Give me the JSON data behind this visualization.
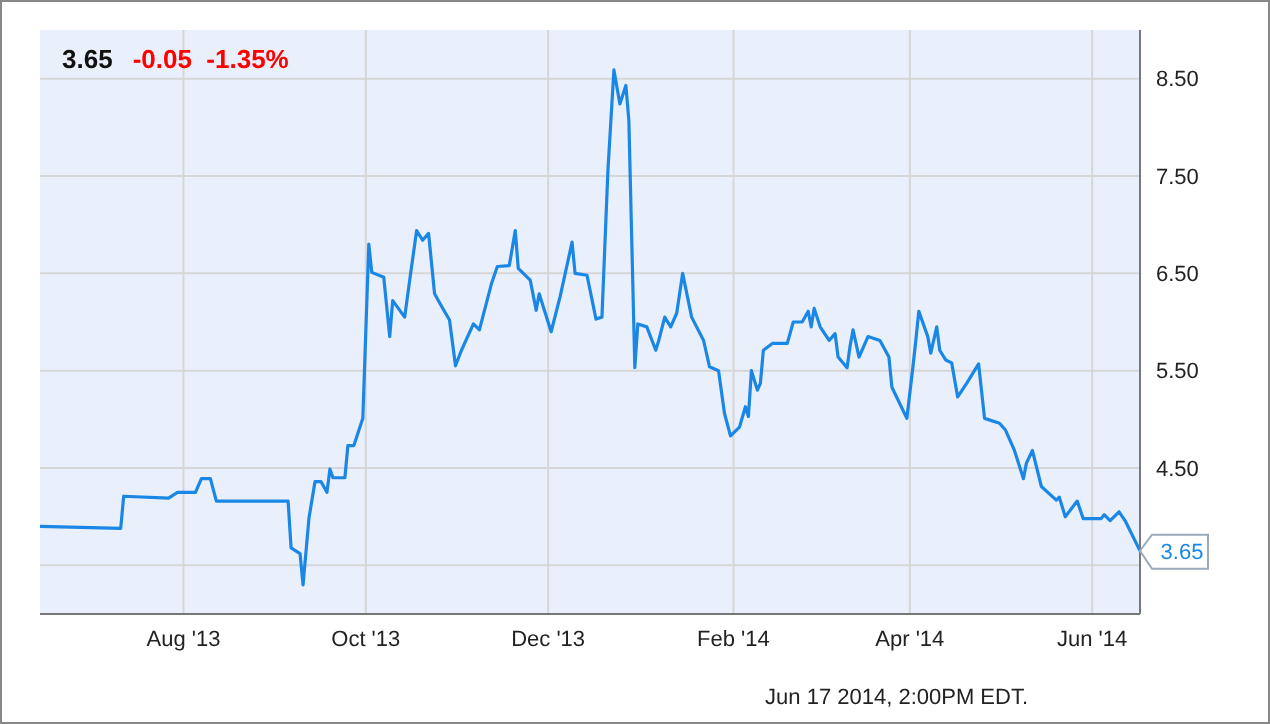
{
  "chart_data": {
    "type": "line",
    "title": "3.65",
    "subtitle": "-0.05  -1.35%",
    "annotations": [
      {
        "text": "3.65",
        "x": "2014-06-17",
        "y": 3.65
      },
      "Jun 17 2014, 2:00PM EDT."
    ],
    "x": [
      "2013-06-14",
      "2013-07-11",
      "2013-07-12",
      "2013-07-27",
      "2013-07-30",
      "2013-08-05",
      "2013-08-07",
      "2013-08-10",
      "2013-08-12",
      "2013-09-05",
      "2013-09-06",
      "2013-09-09",
      "2013-09-10",
      "2013-09-12",
      "2013-09-14",
      "2013-09-16",
      "2013-09-18",
      "2013-09-19",
      "2013-09-20",
      "2013-09-24",
      "2013-09-25",
      "2013-09-27",
      "2013-09-30",
      "2013-10-02",
      "2013-10-03",
      "2013-10-07",
      "2013-10-09",
      "2013-10-10",
      "2013-10-14",
      "2013-10-16",
      "2013-10-18",
      "2013-10-20",
      "2013-10-22",
      "2013-10-24",
      "2013-10-26",
      "2013-10-29",
      "2013-10-31",
      "2013-11-02",
      "2013-11-06",
      "2013-11-08",
      "2013-11-12",
      "2013-11-14",
      "2013-11-18",
      "2013-11-20",
      "2013-11-21",
      "2013-11-25",
      "2013-11-27",
      "2013-11-28",
      "2013-12-02",
      "2013-12-05",
      "2013-12-09",
      "2013-12-10",
      "2013-12-14",
      "2013-12-17",
      "2013-12-19",
      "2013-12-21",
      "2013-12-23",
      "2013-12-25",
      "2013-12-27",
      "2013-12-28",
      "2013-12-30",
      "2013-12-31",
      "2014-01-03",
      "2014-01-06",
      "2014-01-07",
      "2014-01-09",
      "2014-01-11",
      "2014-01-13",
      "2014-01-15",
      "2014-01-18",
      "2014-01-22",
      "2014-01-24",
      "2014-01-27",
      "2014-01-29",
      "2014-01-31",
      "2014-02-03",
      "2014-02-05",
      "2014-02-06",
      "2014-02-07",
      "2014-02-09",
      "2014-02-10",
      "2014-02-11",
      "2014-02-14",
      "2014-02-19",
      "2014-02-21",
      "2014-02-24",
      "2014-02-26",
      "2014-02-27",
      "2014-02-28",
      "2014-03-02",
      "2014-03-05",
      "2014-03-07",
      "2014-03-08",
      "2014-03-11",
      "2014-03-12",
      "2014-03-13",
      "2014-03-15",
      "2014-03-18",
      "2014-03-22",
      "2014-03-25",
      "2014-03-26",
      "2014-03-31",
      "2014-04-02",
      "2014-04-03",
      "2014-04-04",
      "2014-04-07",
      "2014-04-08",
      "2014-04-10",
      "2014-04-11",
      "2014-04-13",
      "2014-04-15",
      "2014-04-17",
      "2014-04-20",
      "2014-04-24",
      "2014-04-26",
      "2014-05-01",
      "2014-05-03",
      "2014-05-06",
      "2014-05-09",
      "2014-05-10",
      "2014-05-12",
      "2014-05-15",
      "2014-05-20",
      "2014-05-21",
      "2014-05-23",
      "2014-05-27",
      "2014-05-29",
      "2014-06-04",
      "2014-06-05",
      "2014-06-07",
      "2014-06-10",
      "2014-06-12",
      "2014-06-17"
    ],
    "values": [
      3.9,
      3.88,
      4.21,
      4.19,
      4.25,
      4.25,
      4.39,
      4.39,
      4.16,
      4.16,
      3.68,
      3.62,
      3.3,
      3.99,
      4.36,
      4.36,
      4.25,
      4.49,
      4.4,
      4.4,
      4.73,
      4.73,
      5.01,
      6.8,
      6.51,
      6.46,
      5.85,
      6.22,
      6.05,
      6.5,
      6.94,
      6.84,
      6.91,
      6.29,
      6.18,
      6.02,
      5.55,
      5.71,
      5.98,
      5.92,
      6.39,
      6.57,
      6.58,
      6.94,
      6.55,
      6.43,
      6.12,
      6.29,
      5.9,
      6.26,
      6.82,
      6.5,
      6.48,
      6.03,
      6.05,
      7.56,
      8.59,
      8.24,
      8.43,
      8.07,
      5.53,
      5.98,
      5.95,
      5.71,
      5.81,
      6.05,
      5.95,
      6.09,
      6.5,
      6.05,
      5.81,
      5.54,
      5.5,
      5.06,
      4.83,
      4.92,
      5.13,
      5.03,
      5.5,
      5.3,
      5.37,
      5.71,
      5.78,
      5.78,
      6.0,
      6.0,
      6.11,
      5.95,
      6.14,
      5.95,
      5.81,
      5.88,
      5.64,
      5.53,
      5.75,
      5.92,
      5.64,
      5.85,
      5.81,
      5.64,
      5.33,
      5.01,
      5.53,
      5.81,
      6.11,
      5.85,
      5.68,
      5.95,
      5.71,
      5.61,
      5.58,
      5.23,
      5.37,
      5.57,
      5.01,
      4.96,
      4.89,
      4.68,
      4.39,
      4.55,
      4.68,
      4.31,
      4.17,
      4.2,
      4.0,
      4.16,
      3.98,
      3.98,
      4.02,
      3.96,
      4.05,
      3.96,
      3.65
    ],
    "color": "#1a87e6",
    "xlim": [
      "2013-06-14",
      "2014-06-17"
    ],
    "xticks": [
      {
        "value": "2013-08-01",
        "label": "Aug '13"
      },
      {
        "value": "2013-10-01",
        "label": "Oct '13"
      },
      {
        "value": "2013-12-01",
        "label": "Dec '13"
      },
      {
        "value": "2014-02-01",
        "label": "Feb '14"
      },
      {
        "value": "2014-04-01",
        "label": "Apr '14"
      },
      {
        "value": "2014-06-01",
        "label": "Jun '14"
      }
    ],
    "ylim": [
      3.0,
      9.0
    ],
    "yticks": [
      {
        "value": 3.5,
        "label": null
      },
      {
        "value": 4.5,
        "label": "4.50"
      },
      {
        "value": 5.5,
        "label": "5.50"
      },
      {
        "value": 6.5,
        "label": "6.50"
      },
      {
        "value": 7.5,
        "label": "7.50"
      },
      {
        "value": 8.5,
        "label": "8.50"
      }
    ],
    "grid": true
  }
}
